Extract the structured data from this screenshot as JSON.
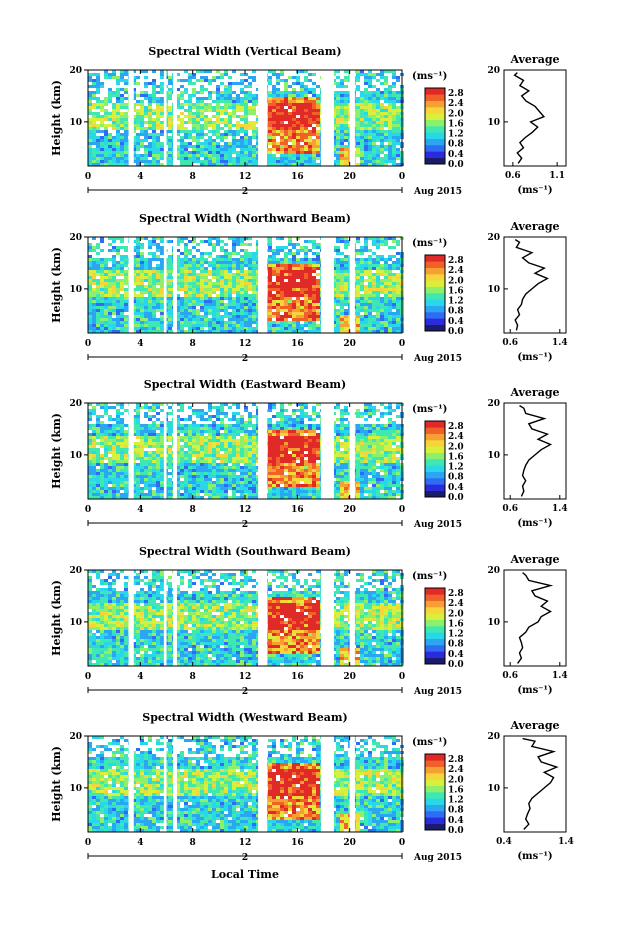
{
  "colors": {
    "scale": [
      "#1b1b6b",
      "#2a2adf",
      "#2f6cf4",
      "#2aa6f2",
      "#28d8e8",
      "#3fe8b0",
      "#8cf06a",
      "#d8f03c",
      "#f5d53a",
      "#f5a030",
      "#f06028",
      "#e02a28"
    ]
  },
  "figure": {
    "x_axis_label": "Local Time",
    "date_label": "Aug 2015",
    "date_day": "2"
  },
  "chart_data": [
    {
      "type": "heatmap",
      "title": "Spectral Width (Vertical Beam)",
      "ylabel": "Height (km)",
      "yticks": [
        "20",
        "10"
      ],
      "xticks": [
        "0",
        "4",
        "8",
        "12",
        "16",
        "20",
        "0"
      ],
      "xlim": [
        0,
        24
      ],
      "ylim": [
        1.5,
        20
      ],
      "colorbar": {
        "unit": "(ms⁻¹)",
        "ticks": [
          "2.8",
          "2.4",
          "2.0",
          "1.6",
          "1.2",
          "0.8",
          "0.4",
          "0.0"
        ],
        "range": [
          0,
          3.0
        ]
      },
      "gaps": [
        [
          3.1,
          3.5
        ],
        [
          5.8,
          6.0
        ],
        [
          6.5,
          6.8
        ],
        [
          13.0,
          13.7
        ],
        [
          17.8,
          18.8
        ],
        [
          20.0,
          20.4
        ]
      ],
      "average": {
        "title": "Average",
        "unit": "(ms⁻¹)",
        "xticks": [
          "0.6",
          "1.1"
        ],
        "xlim": [
          0.5,
          1.2
        ],
        "yticks": [
          "20",
          "10"
        ],
        "profile": [
          [
            2,
            0.66
          ],
          [
            3,
            0.7
          ],
          [
            4,
            0.65
          ],
          [
            5,
            0.72
          ],
          [
            6,
            0.68
          ],
          [
            7,
            0.74
          ],
          [
            8,
            0.82
          ],
          [
            9,
            0.88
          ],
          [
            10,
            0.8
          ],
          [
            11,
            0.95
          ],
          [
            12,
            0.9
          ],
          [
            13,
            0.85
          ],
          [
            14,
            0.75
          ],
          [
            15,
            0.7
          ],
          [
            16,
            0.78
          ],
          [
            17,
            0.68
          ],
          [
            18,
            0.72
          ],
          [
            19,
            0.62
          ],
          [
            19.5,
            0.65
          ]
        ]
      }
    },
    {
      "type": "heatmap",
      "title": "Spectral Width (Northward Beam)",
      "ylabel": "Height (km)",
      "yticks": [
        "20",
        "10"
      ],
      "xticks": [
        "0",
        "4",
        "8",
        "12",
        "16",
        "20",
        "0"
      ],
      "xlim": [
        0,
        24
      ],
      "ylim": [
        1.5,
        20
      ],
      "colorbar": {
        "unit": "(ms⁻¹)",
        "ticks": [
          "2.8",
          "2.4",
          "2.0",
          "1.6",
          "1.2",
          "0.8",
          "0.4",
          "0.0"
        ],
        "range": [
          0,
          3.0
        ]
      },
      "gaps": [
        [
          3.1,
          3.5
        ],
        [
          5.8,
          6.0
        ],
        [
          6.5,
          6.8
        ],
        [
          13.0,
          13.7
        ],
        [
          17.8,
          18.8
        ],
        [
          20.0,
          20.4
        ]
      ],
      "average": {
        "title": "Average",
        "unit": "(ms⁻¹)",
        "xticks": [
          "0.6",
          "1.4"
        ],
        "xlim": [
          0.5,
          1.5
        ],
        "yticks": [
          "20",
          "10"
        ],
        "profile": [
          [
            2,
            0.7
          ],
          [
            3,
            0.72
          ],
          [
            4,
            0.68
          ],
          [
            5,
            0.75
          ],
          [
            6,
            0.72
          ],
          [
            7,
            0.78
          ],
          [
            8,
            0.8
          ],
          [
            9,
            0.85
          ],
          [
            10,
            0.95
          ],
          [
            11,
            1.05
          ],
          [
            12,
            1.2
          ],
          [
            13,
            1.0
          ],
          [
            14,
            1.15
          ],
          [
            15,
            0.9
          ],
          [
            16,
            0.8
          ],
          [
            17,
            0.95
          ],
          [
            18,
            0.7
          ],
          [
            19,
            0.75
          ],
          [
            19.5,
            0.68
          ]
        ]
      }
    },
    {
      "type": "heatmap",
      "title": "Spectral Width (Eastward Beam)",
      "ylabel": "Height (km)",
      "yticks": [
        "20",
        "10"
      ],
      "xticks": [
        "0",
        "4",
        "8",
        "12",
        "16",
        "20",
        "0"
      ],
      "xlim": [
        0,
        24
      ],
      "ylim": [
        1.5,
        20
      ],
      "colorbar": {
        "unit": "(ms⁻¹)",
        "ticks": [
          "2.8",
          "2.4",
          "2.0",
          "1.6",
          "1.2",
          "0.8",
          "0.4",
          "0.0"
        ],
        "range": [
          0,
          3.0
        ]
      },
      "gaps": [
        [
          3.1,
          3.5
        ],
        [
          5.8,
          6.0
        ],
        [
          6.5,
          6.8
        ],
        [
          13.0,
          13.7
        ],
        [
          17.8,
          18.8
        ],
        [
          20.0,
          20.4
        ]
      ],
      "average": {
        "title": "Average",
        "unit": "(ms⁻¹)",
        "xticks": [
          "0.6",
          "1.4"
        ],
        "xlim": [
          0.5,
          1.5
        ],
        "yticks": [
          "20",
          "10"
        ],
        "profile": [
          [
            2,
            0.78
          ],
          [
            3,
            0.82
          ],
          [
            4,
            0.8
          ],
          [
            5,
            0.85
          ],
          [
            6,
            0.8
          ],
          [
            7,
            0.82
          ],
          [
            8,
            0.85
          ],
          [
            9,
            0.9
          ],
          [
            10,
            1.0
          ],
          [
            11,
            1.1
          ],
          [
            12,
            1.25
          ],
          [
            13,
            1.05
          ],
          [
            14,
            1.2
          ],
          [
            15,
            0.95
          ],
          [
            16,
            0.9
          ],
          [
            17,
            1.15
          ],
          [
            18,
            0.85
          ],
          [
            19,
            0.82
          ],
          [
            19.5,
            0.75
          ]
        ]
      }
    },
    {
      "type": "heatmap",
      "title": "Spectral Width (Southward Beam)",
      "ylabel": "Height (km)",
      "yticks": [
        "20",
        "10"
      ],
      "xticks": [
        "0",
        "4",
        "8",
        "12",
        "16",
        "20",
        "0"
      ],
      "xlim": [
        0,
        24
      ],
      "ylim": [
        1.5,
        20
      ],
      "colorbar": {
        "unit": "(ms⁻¹)",
        "ticks": [
          "2.8",
          "2.4",
          "2.0",
          "1.6",
          "1.2",
          "0.8",
          "0.4",
          "0.0"
        ],
        "range": [
          0,
          3.0
        ]
      },
      "gaps": [
        [
          3.1,
          3.5
        ],
        [
          5.8,
          6.0
        ],
        [
          6.5,
          6.8
        ],
        [
          13.0,
          13.7
        ],
        [
          17.8,
          18.8
        ],
        [
          20.0,
          20.4
        ]
      ],
      "average": {
        "title": "Average",
        "unit": "(ms⁻¹)",
        "xticks": [
          "0.6",
          "1.4"
        ],
        "xlim": [
          0.5,
          1.5
        ],
        "yticks": [
          "20",
          "10"
        ],
        "profile": [
          [
            2,
            0.72
          ],
          [
            3,
            0.78
          ],
          [
            4,
            0.75
          ],
          [
            5,
            0.8
          ],
          [
            6,
            0.78
          ],
          [
            7,
            0.75
          ],
          [
            8,
            0.85
          ],
          [
            9,
            0.9
          ],
          [
            10,
            1.05
          ],
          [
            11,
            1.1
          ],
          [
            12,
            1.25
          ],
          [
            13,
            1.1
          ],
          [
            14,
            1.2
          ],
          [
            15,
            1.0
          ],
          [
            16,
            0.95
          ],
          [
            17,
            1.25
          ],
          [
            18,
            0.9
          ],
          [
            19,
            0.85
          ],
          [
            19.5,
            0.8
          ]
        ]
      }
    },
    {
      "type": "heatmap",
      "title": "Spectral Width (Westward Beam)",
      "ylabel": "Height (km)",
      "yticks": [
        "20",
        "10"
      ],
      "xticks": [
        "0",
        "4",
        "8",
        "12",
        "16",
        "20",
        "0"
      ],
      "xlim": [
        0,
        24
      ],
      "ylim": [
        1.5,
        20
      ],
      "colorbar": {
        "unit": "(ms⁻¹)",
        "ticks": [
          "2.8",
          "2.4",
          "2.0",
          "1.6",
          "1.2",
          "0.8",
          "0.4",
          "0.0"
        ],
        "range": [
          0,
          3.0
        ]
      },
      "gaps": [
        [
          3.1,
          3.5
        ],
        [
          5.8,
          6.0
        ],
        [
          6.5,
          6.8
        ],
        [
          13.0,
          13.7
        ],
        [
          17.8,
          18.8
        ],
        [
          20.0,
          20.4
        ]
      ],
      "average": {
        "title": "Average",
        "unit": "(ms⁻¹)",
        "xticks": [
          "0.4",
          "1.4"
        ],
        "xlim": [
          0.4,
          1.4
        ],
        "yticks": [
          "20",
          "10"
        ],
        "profile": [
          [
            2,
            0.72
          ],
          [
            3,
            0.8
          ],
          [
            4,
            0.75
          ],
          [
            5,
            0.78
          ],
          [
            6,
            0.82
          ],
          [
            7,
            0.8
          ],
          [
            8,
            0.85
          ],
          [
            9,
            0.95
          ],
          [
            10,
            1.05
          ],
          [
            11,
            1.15
          ],
          [
            12,
            1.2
          ],
          [
            13,
            1.05
          ],
          [
            14,
            1.25
          ],
          [
            15,
            1.0
          ],
          [
            16,
            0.95
          ],
          [
            17,
            1.2
          ],
          [
            18,
            0.85
          ],
          [
            19,
            0.9
          ],
          [
            19.5,
            0.7
          ]
        ]
      }
    }
  ]
}
